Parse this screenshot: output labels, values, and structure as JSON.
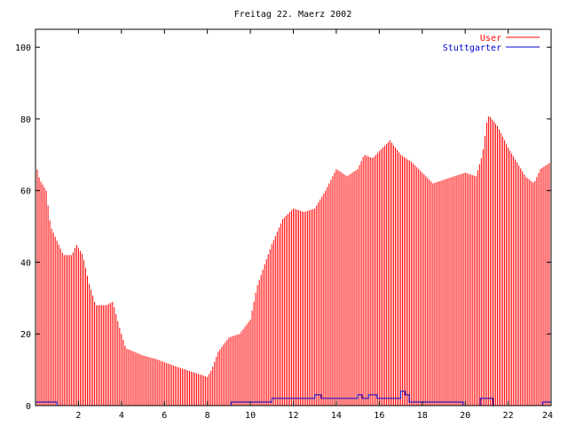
{
  "chart_data": {
    "type": "bar",
    "title": "Freitag 22. Maerz 2002",
    "xlabel": "",
    "ylabel": "",
    "xlim": [
      0,
      24
    ],
    "ylim": [
      0,
      105
    ],
    "xticks": [
      2,
      4,
      6,
      8,
      10,
      12,
      14,
      16,
      18,
      20,
      22,
      24
    ],
    "yticks": [
      0,
      20,
      40,
      60,
      80,
      100
    ],
    "grid": false,
    "legend_position": "top-right",
    "series": [
      {
        "name": "User",
        "color": "#ff0000",
        "style": "impulses",
        "keypoints": [
          [
            0.0,
            70
          ],
          [
            0.1,
            65
          ],
          [
            0.2,
            63
          ],
          [
            0.5,
            60
          ],
          [
            0.7,
            50
          ],
          [
            1.0,
            46
          ],
          [
            1.3,
            42
          ],
          [
            1.7,
            42
          ],
          [
            1.9,
            45
          ],
          [
            2.2,
            42
          ],
          [
            2.5,
            34
          ],
          [
            2.8,
            28
          ],
          [
            3.3,
            28
          ],
          [
            3.6,
            29
          ],
          [
            3.9,
            22
          ],
          [
            4.2,
            16
          ],
          [
            4.6,
            15
          ],
          [
            5.0,
            14
          ],
          [
            5.6,
            13
          ],
          [
            6.5,
            11
          ],
          [
            7.5,
            9
          ],
          [
            8.0,
            8
          ],
          [
            8.2,
            10
          ],
          [
            8.5,
            15
          ],
          [
            9.0,
            19
          ],
          [
            9.5,
            20
          ],
          [
            10.0,
            24
          ],
          [
            10.3,
            33
          ],
          [
            10.7,
            40
          ],
          [
            11.0,
            45
          ],
          [
            11.5,
            52
          ],
          [
            12.0,
            55
          ],
          [
            12.5,
            54
          ],
          [
            13.0,
            55
          ],
          [
            13.5,
            60
          ],
          [
            14.0,
            66
          ],
          [
            14.5,
            64
          ],
          [
            15.0,
            66
          ],
          [
            15.3,
            70
          ],
          [
            15.7,
            69
          ],
          [
            16.0,
            71
          ],
          [
            16.5,
            74
          ],
          [
            17.0,
            70
          ],
          [
            17.5,
            68
          ],
          [
            18.0,
            65
          ],
          [
            18.5,
            62
          ],
          [
            19.0,
            63
          ],
          [
            19.5,
            64
          ],
          [
            20.0,
            65
          ],
          [
            20.5,
            64
          ],
          [
            20.8,
            70
          ],
          [
            21.0,
            79
          ],
          [
            21.1,
            81
          ],
          [
            21.5,
            78
          ],
          [
            22.0,
            72
          ],
          [
            22.5,
            67
          ],
          [
            22.8,
            64
          ],
          [
            23.2,
            62
          ],
          [
            23.5,
            66
          ],
          [
            24.0,
            68
          ]
        ]
      },
      {
        "name": "Stuttgarter",
        "color": "#0000cc",
        "style": "steps",
        "points": [
          [
            0.0,
            1
          ],
          [
            1.0,
            0
          ],
          [
            9.1,
            1
          ],
          [
            11.0,
            2
          ],
          [
            13.0,
            3
          ],
          [
            13.3,
            2
          ],
          [
            15.0,
            3
          ],
          [
            15.2,
            2
          ],
          [
            15.5,
            3
          ],
          [
            15.9,
            2
          ],
          [
            17.0,
            4
          ],
          [
            17.2,
            3
          ],
          [
            17.4,
            1
          ],
          [
            19.9,
            0
          ],
          [
            20.7,
            2
          ],
          [
            21.3,
            0
          ],
          [
            23.6,
            1
          ],
          [
            24.0,
            1
          ]
        ]
      }
    ]
  }
}
